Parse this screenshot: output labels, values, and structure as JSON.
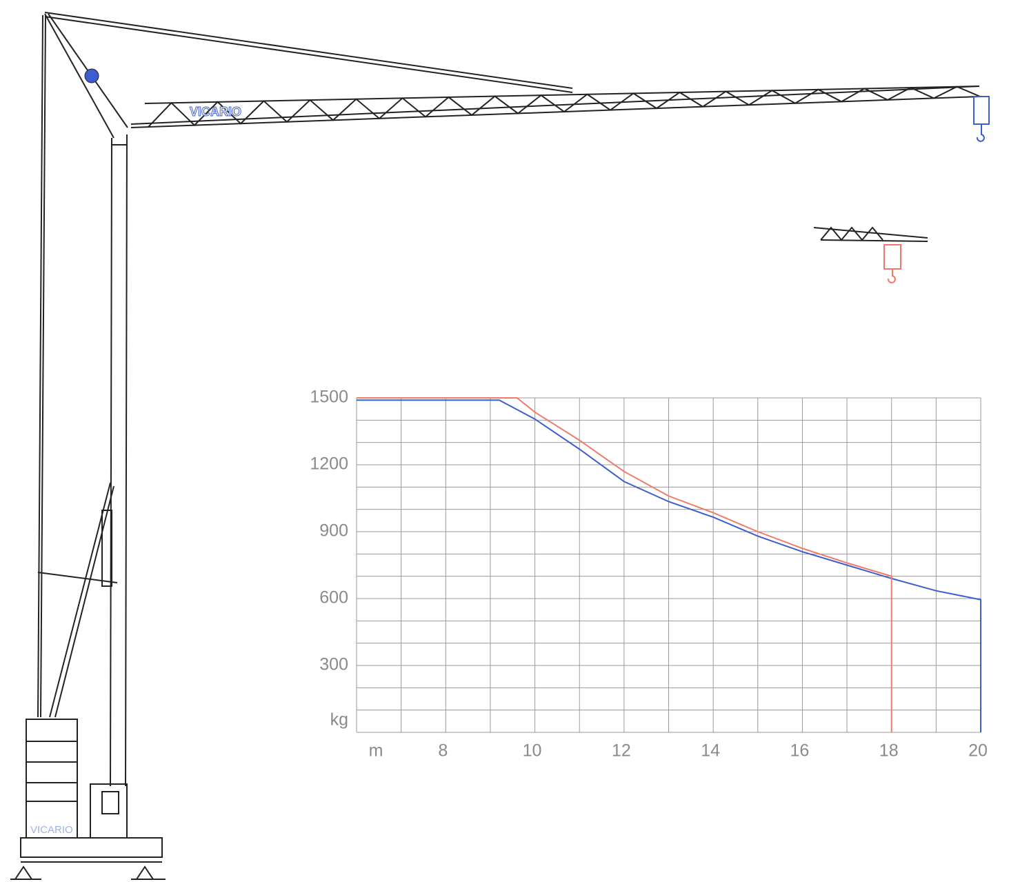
{
  "chart_data": {
    "type": "line",
    "x_label": "m",
    "y_label": "kg",
    "series": [
      {
        "color": "#3c5ccf",
        "x": [
          6,
          9.2,
          10,
          11,
          12,
          13,
          14,
          15,
          16,
          17,
          18,
          19,
          20,
          20
        ],
        "values": [
          1490,
          1490,
          1405,
          1270,
          1125,
          1035,
          965,
          880,
          810,
          750,
          690,
          635,
          595,
          0
        ]
      },
      {
        "color": "#f07a68",
        "x": [
          6,
          9.6,
          10,
          11,
          12,
          13,
          14,
          15,
          16,
          17,
          18,
          18
        ],
        "values": [
          1500,
          1500,
          1436,
          1310,
          1170,
          1060,
          985,
          900,
          825,
          760,
          700,
          0
        ]
      }
    ],
    "xlim": [
      6,
      20
    ],
    "xticks": [
      8,
      10,
      12,
      14,
      16,
      18,
      20
    ],
    "ylim": [
      0,
      1500
    ],
    "yticks": [
      300,
      600,
      900,
      1200,
      1500
    ],
    "xgrid": [
      6,
      7,
      8,
      9,
      10,
      11,
      12,
      13,
      14,
      15,
      16,
      17,
      18,
      19,
      20
    ],
    "ygrid": [
      0,
      100,
      200,
      300,
      400,
      500,
      600,
      700,
      800,
      900,
      1000,
      1100,
      1200,
      1300,
      1400,
      1500
    ],
    "grid_color": "#9a9a9a"
  },
  "branding": {
    "boom_label": "VICARIO",
    "ballast_label": "VICARIO"
  }
}
